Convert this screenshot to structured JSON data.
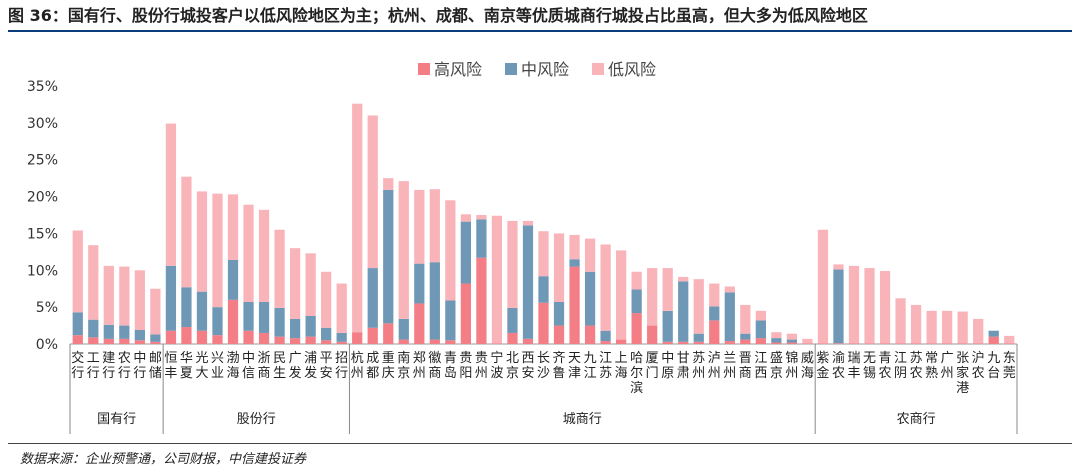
{
  "title": "图 36：国有行、股份行城投客户以低风险地区为主；杭州、成都、南京等优质城商行城投占比虽高，但大多为低风险地区",
  "source": "数据来源：企业预警通，公司财报，中信建投证券",
  "colors": {
    "high": "#f47e85",
    "mid": "#6f97b6",
    "low": "#f9b4b9",
    "rule": "#0a3d7a"
  },
  "chart_data": {
    "type": "bar",
    "stacked": true,
    "ylim": [
      0,
      35
    ],
    "yticks": [
      "0%",
      "5%",
      "10%",
      "15%",
      "20%",
      "25%",
      "30%",
      "35%"
    ],
    "legend": [
      "高风险",
      "中风险",
      "低风险"
    ],
    "legend_position": "top-center",
    "categories": [
      "交行",
      "工行",
      "建行",
      "农行",
      "中行",
      "邮储",
      "恒丰",
      "华夏",
      "光大",
      "兴业",
      "渤海",
      "中信",
      "浙商",
      "民生",
      "广发",
      "浦发",
      "平安",
      "招行",
      "杭州",
      "成都",
      "重庆",
      "南京",
      "郑州",
      "徽商",
      "青岛",
      "贵阳",
      "贵州",
      "宁波",
      "北京",
      "西安",
      "长沙",
      "齐鲁",
      "天津",
      "九江",
      "江苏",
      "上海",
      "哈尔滨",
      "厦门",
      "中原",
      "甘肃",
      "苏州",
      "泸州",
      "兰州",
      "晋商",
      "江西",
      "盛京",
      "锦州",
      "威海",
      "紫金",
      "渝农",
      "瑞丰",
      "无锡",
      "青农",
      "江阴",
      "苏农",
      "常熟",
      "广州",
      "张家港",
      "沪农",
      "九台",
      "东莞"
    ],
    "groups": [
      {
        "label": "国有行",
        "start": 0,
        "end": 5
      },
      {
        "label": "股份行",
        "start": 6,
        "end": 17
      },
      {
        "label": "城商行",
        "start": 18,
        "end": 47
      },
      {
        "label": "农商行",
        "start": 48,
        "end": 60
      }
    ],
    "series": [
      {
        "name": "高风险",
        "values": [
          1.2,
          0.9,
          0.7,
          0.7,
          0.5,
          0.3,
          1.8,
          2.3,
          1.8,
          1.2,
          6.0,
          1.8,
          1.5,
          1.0,
          0.8,
          1.0,
          0.5,
          0.3,
          1.6,
          2.2,
          2.8,
          0.6,
          5.5,
          0.6,
          0.5,
          8.2,
          11.7,
          0.1,
          1.5,
          0.7,
          5.6,
          2.5,
          10.5,
          2.5,
          0.4,
          0.6,
          4.2,
          2.5,
          0.3,
          0.3,
          0.3,
          3.2,
          0.4,
          0.6,
          0.8,
          0.2,
          0.2,
          0.1,
          0.1,
          0.1,
          0.1,
          0.1,
          0.1,
          0.1,
          0.1,
          0.1,
          0.1,
          0.1,
          0.1,
          1.0,
          0.1
        ]
      },
      {
        "name": "中风险",
        "values": [
          3.1,
          2.4,
          1.9,
          1.8,
          1.4,
          1.0,
          8.8,
          5.4,
          5.3,
          3.8,
          5.4,
          3.9,
          4.2,
          3.9,
          2.6,
          2.8,
          1.7,
          1.2,
          0.0,
          8.1,
          18.1,
          2.8,
          5.4,
          10.5,
          5.4,
          8.4,
          5.2,
          0.0,
          3.4,
          15.4,
          3.6,
          3.2,
          1.0,
          7.3,
          1.4,
          0.0,
          3.2,
          0.0,
          4.2,
          8.2,
          1.1,
          1.9,
          6.6,
          0.8,
          2.4,
          0.6,
          0.4,
          0.0,
          0.0,
          10.0,
          0.0,
          0.0,
          0.0,
          0.0,
          0.0,
          0.0,
          0.0,
          0.0,
          0.0,
          0.8,
          0.0
        ]
      },
      {
        "name": "低风险",
        "values": [
          11.1,
          10.1,
          8.0,
          8.0,
          8.1,
          6.2,
          19.3,
          15.0,
          13.6,
          15.4,
          8.9,
          13.2,
          12.5,
          10.6,
          9.6,
          8.5,
          7.6,
          6.7,
          31.0,
          20.7,
          1.6,
          18.7,
          10.0,
          9.9,
          13.6,
          1.0,
          0.6,
          17.3,
          11.8,
          0.6,
          6.1,
          9.3,
          3.3,
          4.5,
          11.7,
          12.1,
          2.4,
          7.8,
          5.8,
          0.6,
          7.4,
          3.1,
          0.8,
          3.9,
          1.3,
          0.8,
          0.8,
          0.6,
          15.4,
          0.7,
          10.5,
          10.2,
          9.8,
          6.1,
          5.2,
          4.4,
          4.4,
          4.3,
          3.3,
          0.0,
          1.0
        ]
      }
    ]
  }
}
